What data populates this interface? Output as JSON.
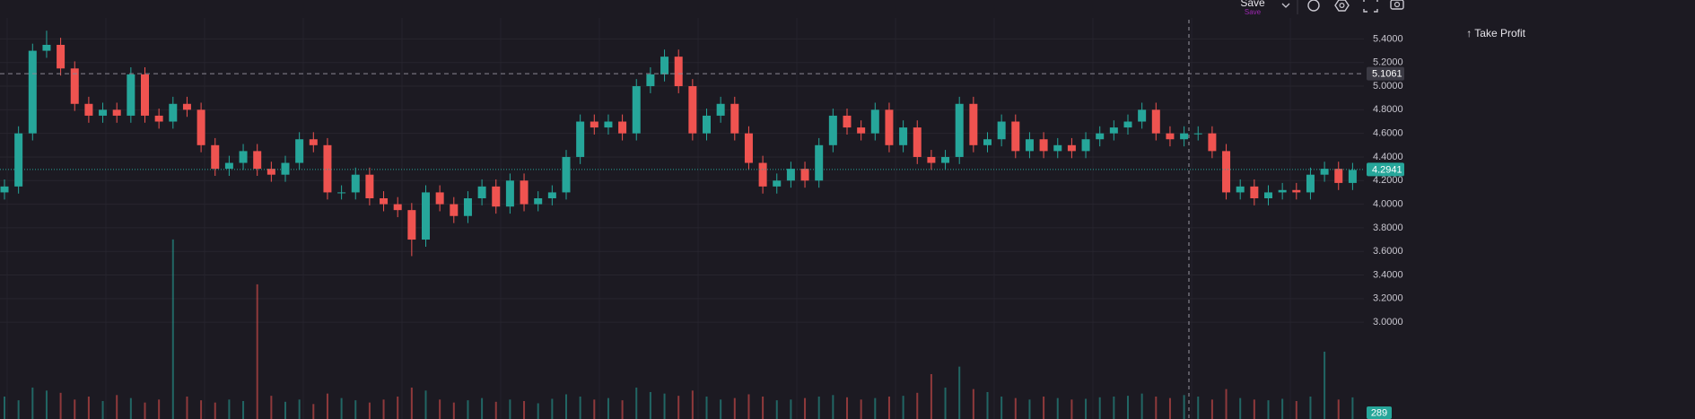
{
  "toolbar": {
    "save": "Save",
    "save_sub": "Save"
  },
  "chart_data": {
    "type": "candlestick",
    "annotation": "↑ Take Profit",
    "up_color": "#26a69a",
    "down_color": "#ef5350",
    "grid": true,
    "ylim": [
      2.18,
      5.73
    ],
    "yticks": [
      {
        "value": 5.4,
        "label": "5.4000"
      },
      {
        "value": 5.2,
        "label": "5.2000"
      },
      {
        "value": 5.0,
        "label": "5.0000"
      },
      {
        "value": 4.8,
        "label": "4.8000"
      },
      {
        "value": 4.6,
        "label": "4.6000"
      },
      {
        "value": 4.4,
        "label": "4.4000"
      },
      {
        "value": 4.2,
        "label": "4.2000"
      },
      {
        "value": 4.0,
        "label": "4.0000"
      },
      {
        "value": 3.8,
        "label": "3.8000"
      },
      {
        "value": 3.6,
        "label": "3.6000"
      },
      {
        "value": 3.4,
        "label": "3.4000"
      },
      {
        "value": 3.2,
        "label": "3.2000"
      },
      {
        "value": 3.0,
        "label": "3.0000"
      }
    ],
    "lines": [
      {
        "value": 5.1061,
        "style": "dashed",
        "color": "#8a8894"
      },
      {
        "value": 4.2941,
        "style": "dotted",
        "color": "#26a69a"
      }
    ],
    "series": {
      "open": [
        4.1,
        4.15,
        4.6,
        5.3,
        5.35,
        5.15,
        4.85,
        4.75,
        4.8,
        4.75,
        5.1,
        4.75,
        4.7,
        4.85,
        4.8,
        4.5,
        4.3,
        4.35,
        4.45,
        4.3,
        4.25,
        4.35,
        4.55,
        4.5,
        4.1,
        4.1,
        4.25,
        4.05,
        4.0,
        3.95,
        3.7,
        4.1,
        4.0,
        3.9,
        4.05,
        4.15,
        3.98,
        4.2,
        4.0,
        4.05,
        4.1,
        4.4,
        4.7,
        4.65,
        4.7,
        4.6,
        5.0,
        5.1,
        5.25,
        5.0,
        4.6,
        4.75,
        4.85,
        4.6,
        4.35,
        4.15,
        4.2,
        4.3,
        4.2,
        4.5,
        4.75,
        4.65,
        4.6,
        4.8,
        4.5,
        4.65,
        4.4,
        4.35,
        4.4,
        4.85,
        4.5,
        4.55,
        4.7,
        4.45,
        4.55,
        4.45,
        4.5,
        4.45,
        4.55,
        4.6,
        4.65,
        4.7,
        4.8,
        4.6,
        4.55,
        4.6,
        4.6,
        4.45,
        4.1,
        4.15,
        4.05,
        4.1,
        4.12,
        4.1,
        4.25,
        4.3,
        4.18
      ],
      "high": [
        4.21,
        4.66,
        5.36,
        5.47,
        5.41,
        5.21,
        4.91,
        4.86,
        4.86,
        5.16,
        5.16,
        4.81,
        4.91,
        4.91,
        4.86,
        4.56,
        4.41,
        4.51,
        4.51,
        4.36,
        4.41,
        4.61,
        4.61,
        4.56,
        4.16,
        4.31,
        4.31,
        4.11,
        4.06,
        4.01,
        4.16,
        4.16,
        4.06,
        4.11,
        4.21,
        4.21,
        4.26,
        4.26,
        4.11,
        4.16,
        4.46,
        4.76,
        4.76,
        4.76,
        4.76,
        5.06,
        5.16,
        5.31,
        5.31,
        5.06,
        4.81,
        4.91,
        4.91,
        4.66,
        4.41,
        4.26,
        4.36,
        4.36,
        4.56,
        4.81,
        4.81,
        4.71,
        4.86,
        4.86,
        4.71,
        4.71,
        4.46,
        4.46,
        4.91,
        4.91,
        4.61,
        4.76,
        4.76,
        4.61,
        4.61,
        4.56,
        4.56,
        4.61,
        4.66,
        4.71,
        4.76,
        4.86,
        4.86,
        4.66,
        4.66,
        4.66,
        4.66,
        4.51,
        4.21,
        4.21,
        4.16,
        4.18,
        4.18,
        4.31,
        4.36,
        4.36,
        4.35
      ],
      "low": [
        4.04,
        4.09,
        4.54,
        5.24,
        5.09,
        4.79,
        4.69,
        4.69,
        4.69,
        4.69,
        4.69,
        4.64,
        4.64,
        4.74,
        4.44,
        4.24,
        4.24,
        4.29,
        4.24,
        4.19,
        4.19,
        4.29,
        4.44,
        4.04,
        4.04,
        4.04,
        3.99,
        3.94,
        3.89,
        3.56,
        3.64,
        3.94,
        3.84,
        3.84,
        3.99,
        3.92,
        3.92,
        3.94,
        3.94,
        3.99,
        4.04,
        4.34,
        4.59,
        4.59,
        4.54,
        4.54,
        4.94,
        5.04,
        4.94,
        4.54,
        4.54,
        4.69,
        4.54,
        4.29,
        4.09,
        4.09,
        4.14,
        4.14,
        4.14,
        4.44,
        4.59,
        4.54,
        4.54,
        4.44,
        4.44,
        4.34,
        4.29,
        4.29,
        4.34,
        4.44,
        4.44,
        4.49,
        4.39,
        4.39,
        4.39,
        4.39,
        4.39,
        4.39,
        4.49,
        4.54,
        4.59,
        4.64,
        4.54,
        4.49,
        4.49,
        4.54,
        4.39,
        4.04,
        4.04,
        3.99,
        3.99,
        4.04,
        4.04,
        4.04,
        4.19,
        4.12,
        4.12
      ],
      "close": [
        4.15,
        4.6,
        5.3,
        5.35,
        5.15,
        4.85,
        4.75,
        4.8,
        4.75,
        5.1,
        4.75,
        4.7,
        4.85,
        4.8,
        4.5,
        4.3,
        4.35,
        4.45,
        4.3,
        4.25,
        4.35,
        4.55,
        4.5,
        4.1,
        4.1,
        4.25,
        4.05,
        4.0,
        3.95,
        3.7,
        4.1,
        4.0,
        3.9,
        4.05,
        4.15,
        3.98,
        4.2,
        4.0,
        4.05,
        4.1,
        4.4,
        4.7,
        4.65,
        4.7,
        4.6,
        5.0,
        5.1,
        5.25,
        5.0,
        4.6,
        4.75,
        4.85,
        4.6,
        4.35,
        4.15,
        4.2,
        4.3,
        4.2,
        4.5,
        4.75,
        4.65,
        4.6,
        4.8,
        4.5,
        4.65,
        4.4,
        4.35,
        4.4,
        4.85,
        4.5,
        4.55,
        4.7,
        4.45,
        4.55,
        4.45,
        4.5,
        4.45,
        4.55,
        4.6,
        4.65,
        4.7,
        4.8,
        4.6,
        4.55,
        4.6,
        4.6,
        4.45,
        4.1,
        4.15,
        4.05,
        4.1,
        4.12,
        4.1,
        4.25,
        4.3,
        4.18,
        4.29
      ]
    },
    "volume": {
      "y2lim": [
        0,
        5600
      ],
      "values": [
        300,
        250,
        420,
        380,
        350,
        260,
        300,
        240,
        320,
        280,
        220,
        260,
        2400,
        300,
        250,
        220,
        260,
        240,
        1800,
        310,
        230,
        260,
        200,
        340,
        280,
        250,
        220,
        260,
        300,
        420,
        380,
        260,
        220,
        250,
        280,
        230,
        260,
        240,
        210,
        270,
        330,
        300,
        260,
        280,
        250,
        420,
        360,
        340,
        310,
        380,
        300,
        260,
        280,
        330,
        300,
        250,
        260,
        280,
        300,
        320,
        290,
        260,
        280,
        300,
        310,
        350,
        600,
        420,
        700,
        400,
        360,
        300,
        280,
        260,
        300,
        280,
        260,
        270,
        290,
        300,
        310,
        340,
        300,
        280,
        320,
        300,
        260,
        400,
        280,
        260,
        250,
        270,
        240,
        300,
        900,
        260,
        289
      ]
    }
  }
}
